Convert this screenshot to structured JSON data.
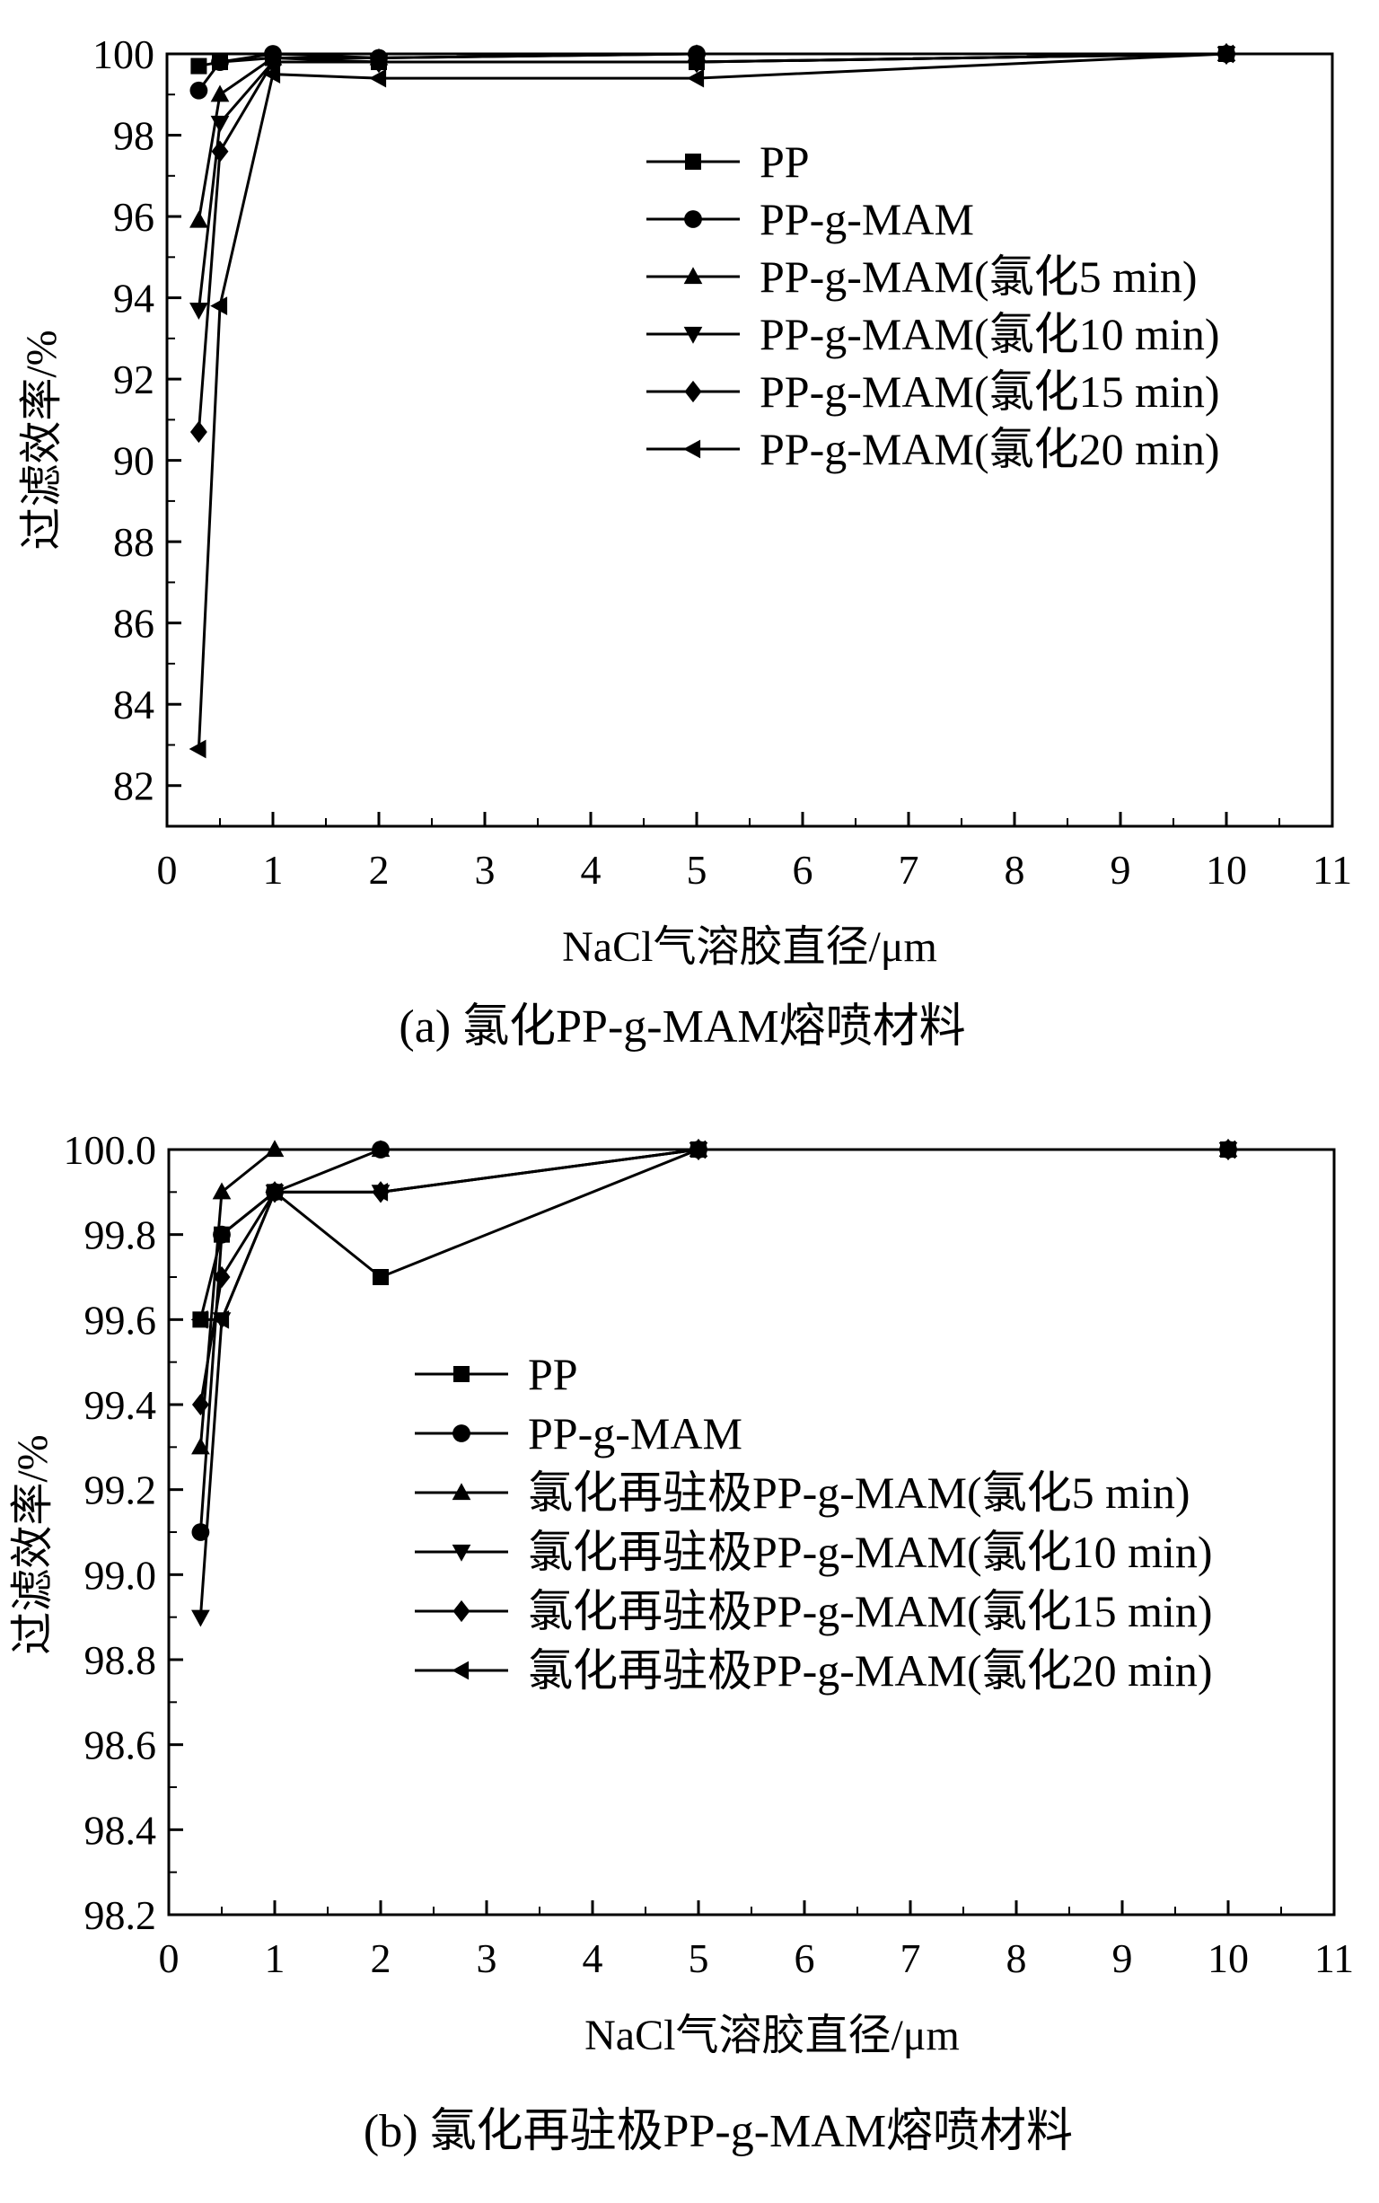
{
  "chart_data": [
    {
      "type": "line",
      "caption": "(a) 氯化PP-g-MAM熔喷材料",
      "xlabel": "NaCl气溶胶直径/μm",
      "ylabel": "过滤效率/%",
      "xlim": [
        0,
        11
      ],
      "ylim": [
        81,
        100
      ],
      "xticks": [
        "0",
        "1",
        "2",
        "3",
        "4",
        "5",
        "6",
        "7",
        "8",
        "9",
        "10",
        "11"
      ],
      "yticks": [
        "82",
        "84",
        "86",
        "88",
        "90",
        "92",
        "94",
        "96",
        "98",
        "100"
      ],
      "legend_position": "top-right",
      "series": [
        {
          "name": "PP",
          "marker": "square",
          "x": [
            0.3,
            0.5,
            1,
            2,
            5,
            10
          ],
          "y": [
            99.7,
            99.8,
            99.9,
            99.8,
            99.8,
            100
          ]
        },
        {
          "name": "PP-g-MAM",
          "marker": "circle",
          "x": [
            0.3,
            0.5,
            1,
            2,
            5,
            10
          ],
          "y": [
            99.1,
            99.8,
            100,
            99.9,
            100,
            100
          ]
        },
        {
          "name": "PP-g-MAM(氯化5 min)",
          "marker": "triangle-up",
          "x": [
            0.3,
            0.5,
            1,
            2,
            5,
            10
          ],
          "y": [
            95.9,
            99.0,
            99.9,
            99.9,
            100,
            100
          ]
        },
        {
          "name": "PP-g-MAM(氯化10 min)",
          "marker": "triangle-down",
          "x": [
            0.3,
            0.5,
            1,
            2,
            5,
            10
          ],
          "y": [
            93.7,
            98.3,
            99.8,
            99.8,
            99.8,
            100
          ]
        },
        {
          "name": "PP-g-MAM(氯化15 min)",
          "marker": "diamond",
          "x": [
            0.3,
            0.5,
            1,
            2,
            5,
            10
          ],
          "y": [
            90.7,
            97.6,
            99.8,
            99.8,
            99.8,
            100
          ]
        },
        {
          "name": "PP-g-MAM(氯化20 min)",
          "marker": "triangle-left",
          "x": [
            0.3,
            0.5,
            1,
            2,
            5,
            10
          ],
          "y": [
            82.9,
            93.8,
            99.5,
            99.4,
            99.4,
            100
          ]
        }
      ]
    },
    {
      "type": "line",
      "caption": "(b) 氯化再驻极PP-g-MAM熔喷材料",
      "xlabel": "NaCl气溶胶直径/μm",
      "ylabel": "过滤效率/%",
      "xlim": [
        0,
        11
      ],
      "ylim": [
        98.2,
        100
      ],
      "xticks": [
        "0",
        "1",
        "2",
        "3",
        "4",
        "5",
        "6",
        "7",
        "8",
        "9",
        "10",
        "11"
      ],
      "yticks": [
        "98.2",
        "98.4",
        "98.6",
        "98.8",
        "99.0",
        "99.2",
        "99.4",
        "99.6",
        "99.8",
        "100.0"
      ],
      "legend_position": "center-right",
      "series": [
        {
          "name": "PP",
          "marker": "square",
          "x": [
            0.3,
            0.5,
            1,
            2,
            5,
            10
          ],
          "y": [
            99.6,
            99.8,
            99.9,
            99.7,
            100,
            100
          ]
        },
        {
          "name": "PP-g-MAM",
          "marker": "circle",
          "x": [
            0.3,
            0.5,
            1,
            2,
            5,
            10
          ],
          "y": [
            99.1,
            99.8,
            99.9,
            100,
            100,
            100
          ]
        },
        {
          "name": "氯化再驻极PP-g-MAM(氯化5 min)",
          "marker": "triangle-up",
          "x": [
            0.3,
            0.5,
            1,
            2,
            5,
            10
          ],
          "y": [
            99.3,
            99.9,
            100,
            100,
            100,
            100
          ]
        },
        {
          "name": "氯化再驻极PP-g-MAM(氯化10 min)",
          "marker": "triangle-down",
          "x": [
            0.3,
            0.5,
            1,
            2,
            5,
            10
          ],
          "y": [
            98.9,
            99.6,
            99.9,
            99.9,
            100,
            100
          ]
        },
        {
          "name": "氯化再驻极PP-g-MAM(氯化15 min)",
          "marker": "diamond",
          "x": [
            0.3,
            0.5,
            1,
            2,
            5,
            10
          ],
          "y": [
            99.4,
            99.7,
            99.9,
            99.9,
            100,
            100
          ]
        },
        {
          "name": "氯化再驻极PP-g-MAM(氯化20 min)",
          "marker": "triangle-left",
          "x": [
            0.3,
            0.5,
            1,
            2,
            5,
            10
          ],
          "y": [
            99.6,
            99.6,
            99.9,
            99.9,
            100,
            100
          ]
        }
      ]
    }
  ]
}
